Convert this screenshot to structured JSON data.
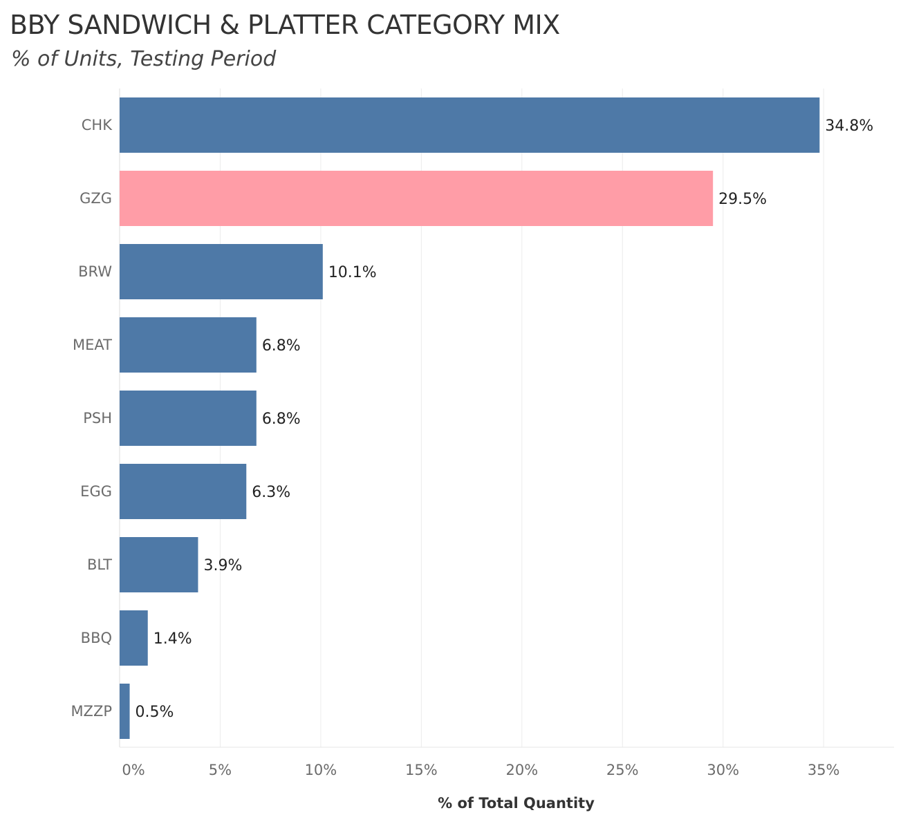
{
  "chart_data": {
    "type": "bar",
    "orientation": "horizontal",
    "title": "BBY SANDWICH & PLATTER CATEGORY MIX",
    "subtitle": "% of Units, Testing Period",
    "xlabel": "% of Total Quantity",
    "ylabel": "",
    "xlim": [
      0,
      38.5
    ],
    "xticks": [
      0,
      5,
      10,
      15,
      20,
      25,
      30,
      35
    ],
    "xtick_labels": [
      "0%",
      "5%",
      "10%",
      "15%",
      "20%",
      "25%",
      "30%",
      "35%"
    ],
    "categories": [
      "CHK",
      "GZG",
      "BRW",
      "MEAT",
      "PSH",
      "EGG",
      "BLT",
      "BBQ",
      "MZZP"
    ],
    "values": [
      34.8,
      29.5,
      10.1,
      6.8,
      6.8,
      6.3,
      3.9,
      1.4,
      0.5
    ],
    "value_labels": [
      "34.8%",
      "29.5%",
      "10.1%",
      "6.8%",
      "6.8%",
      "6.3%",
      "3.9%",
      "1.4%",
      "0.5%"
    ],
    "highlight_category": "GZG",
    "colors": {
      "default": "#4e79a7",
      "highlight": "#ff9da7",
      "grid": "#ececec"
    },
    "grid": true,
    "legend": "none"
  }
}
